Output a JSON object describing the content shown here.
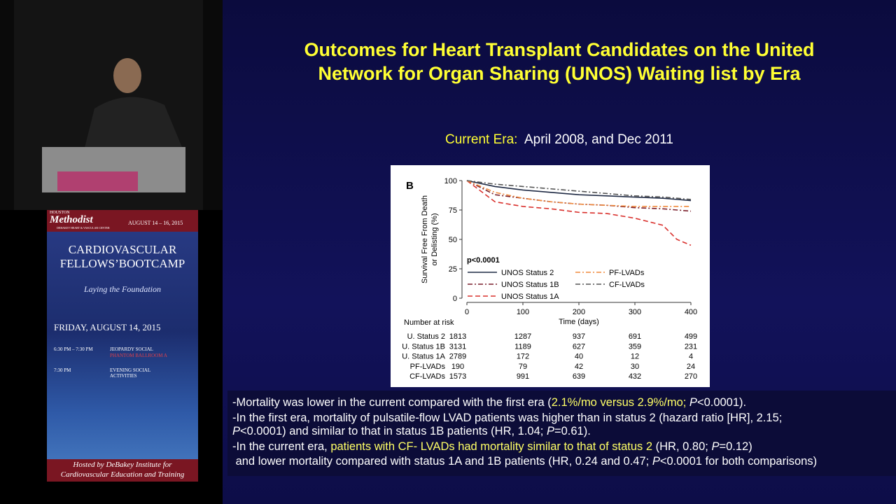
{
  "poster": {
    "brand_top": "HOUSTON",
    "brand": "Methodist",
    "brand_sub": "DEBAKEY HEART & VASCULAR CENTER",
    "dates": "AUGUST 14 – 16, 2015",
    "title": [
      "CARDIOVASCULAR",
      "FELLOWS’BOOTCAMP"
    ],
    "tagline": "Laying the Foundation",
    "day": "FRIDAY, AUGUST 14, 2015",
    "schedule": [
      {
        "time": "6:30 PM – 7:30 PM",
        "event": "JEOPARDY SOCIAL",
        "place": "PHANTOM BALLROOM  A"
      },
      {
        "time": "7:30 PM",
        "event": "EVENING SOCIAL ACTIVITIES"
      }
    ],
    "footer": [
      "Hosted by DeBakey Institute for",
      "Cardiovascular Education and Training"
    ]
  },
  "slide": {
    "title": [
      "Outcomes for Heart Transplant Candidates on the United",
      "Network for Organ Sharing (UNOS) Waiting list by Era"
    ],
    "era": {
      "label": "Current Era:",
      "text": "April  2008, and Dec 2011"
    },
    "chart": {
      "type": "line",
      "panel": "B",
      "y_label": [
        "Survival Free From Death",
        "or Delisting (%)"
      ],
      "x_label": "Time (days)",
      "annotation": "p<0.0001",
      "x": [
        0,
        50,
        100,
        150,
        200,
        250,
        300,
        350,
        375,
        400
      ],
      "xlim": [
        0,
        400
      ],
      "xticks": [
        0,
        100,
        200,
        300,
        400
      ],
      "ylim": [
        0,
        100
      ],
      "yticks": [
        0,
        25,
        50,
        75,
        100
      ],
      "series": [
        {
          "name": "UNOS Status 2",
          "color": "#1f2a44",
          "line_style": "solid",
          "values": [
            100,
            95,
            92,
            90,
            88,
            87,
            86,
            85,
            84,
            83
          ]
        },
        {
          "name": "UNOS Status 1B",
          "color": "#7a1f2b",
          "line_style": "dash-dot",
          "values": [
            100,
            88,
            85,
            82,
            80,
            79,
            77,
            76,
            75,
            74
          ]
        },
        {
          "name": "UNOS Status 1A",
          "color": "#d9302c",
          "line_style": "dashed",
          "values": [
            100,
            82,
            78,
            76,
            73,
            72,
            68,
            62,
            50,
            45
          ]
        },
        {
          "name": "PF-LVADs",
          "color": "#f08a3c",
          "line_style": "dash-dot",
          "values": [
            100,
            90,
            85,
            82,
            80,
            79,
            78,
            78,
            78,
            78
          ]
        },
        {
          "name": "CF-LVADs",
          "color": "#555555",
          "line_style": "dash-dot",
          "values": [
            100,
            97,
            95,
            93,
            91,
            89,
            87,
            86,
            85,
            84
          ]
        }
      ]
    },
    "risk_table": {
      "title": "Number at risk",
      "rows": [
        {
          "label": "U. Status 2",
          "values": [
            1813,
            1287,
            937,
            691,
            499
          ]
        },
        {
          "label": "U. Status 1B",
          "values": [
            3131,
            1189,
            627,
            359,
            231
          ]
        },
        {
          "label": "U. Status 1A",
          "values": [
            2789,
            172,
            40,
            12,
            4
          ]
        },
        {
          "label": "PF-LVADs",
          "values": [
            190,
            79,
            42,
            30,
            24
          ]
        },
        {
          "label": "CF-LVADs",
          "values": [
            1573,
            991,
            639,
            432,
            270
          ]
        }
      ]
    },
    "bullets": [
      [
        [
          {
            "text": "-Mortality was lower in the current compared with the first era ("
          },
          {
            "text": "2.1%/mo versus 2.9%/mo; ",
            "color": "#ffff66"
          },
          {
            "text": "P",
            "italic": true
          },
          {
            "text": "<0.0001)."
          }
        ]
      ],
      [
        [
          {
            "text": "-In the first era, mortality of pulsatile-flow LVAD patients was higher than in status 2 (hazard ratio [HR], 2.15;"
          }
        ],
        [
          {
            "text": "P",
            "italic": true
          },
          {
            "text": "<0.0001) and similar to that in status 1B patients (HR, 1.04; "
          },
          {
            "text": "P",
            "italic": true
          },
          {
            "text": "=0.61)."
          }
        ]
      ],
      [
        [
          {
            "text": "-In the current era, "
          },
          {
            "text": "patients with CF- LVADs had mortality similar to that of status 2",
            "color": "#ffff66"
          },
          {
            "text": " (HR, 0.80; "
          },
          {
            "text": "P",
            "italic": true
          },
          {
            "text": "=0.12)"
          }
        ],
        [
          {
            "text": " and lower mortality compared with status 1A and 1B patients (HR, 0.24 and 0.47; "
          },
          {
            "text": "P",
            "italic": true
          },
          {
            "text": "<0.0001 for both comparisons)"
          }
        ]
      ]
    ]
  }
}
